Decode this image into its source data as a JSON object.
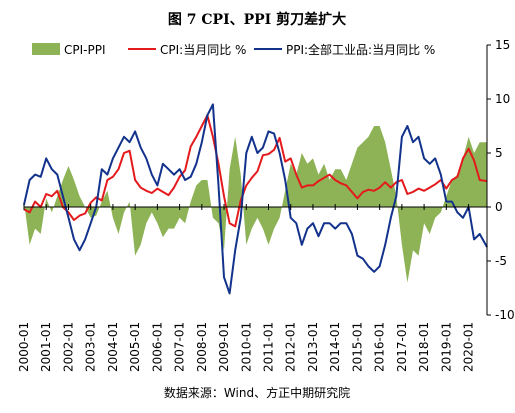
{
  "figure": {
    "title": "图 7 CPI、PPI 剪刀差扩大",
    "source": "数据来源：Wind、方正中期研究院"
  },
  "chart_data": {
    "type": "line",
    "title": "图 7 CPI、PPI 剪刀差扩大",
    "ylim": [
      -10,
      15
    ],
    "yticks": [
      -10,
      -5,
      0,
      5,
      10,
      15
    ],
    "y_axis_position": "right",
    "xlim": [
      2000.0,
      2020.83
    ],
    "xticks": [
      "2000-01",
      "2001-01",
      "2002-01",
      "2003-01",
      "2004-01",
      "2005-01",
      "2006-01",
      "2007-01",
      "2008-01",
      "2009-01",
      "2010-01",
      "2011-01",
      "2012-01",
      "2013-01",
      "2014-01",
      "2015-01",
      "2016-01",
      "2017-01",
      "2018-01",
      "2019-01",
      "2020-01"
    ],
    "legend": {
      "placement": "top"
    },
    "series": [
      {
        "name": "CPI-PPI",
        "kind": "area",
        "color": "#8db356",
        "points": [
          [
            2000.0,
            0.5
          ],
          [
            2000.25,
            -3.5
          ],
          [
            2000.5,
            -2.0
          ],
          [
            2000.75,
            -2.5
          ],
          [
            2001.0,
            0.8
          ],
          [
            2001.25,
            -0.5
          ],
          [
            2001.5,
            1.0
          ],
          [
            2001.75,
            2.5
          ],
          [
            2002.0,
            3.8
          ],
          [
            2002.25,
            2.5
          ],
          [
            2002.5,
            1.0
          ],
          [
            2002.75,
            0.0
          ],
          [
            2003.0,
            -1.0
          ],
          [
            2003.25,
            -0.8
          ],
          [
            2003.5,
            0.5
          ],
          [
            2003.75,
            1.5
          ],
          [
            2004.0,
            -1.0
          ],
          [
            2004.25,
            -2.5
          ],
          [
            2004.5,
            -0.5
          ],
          [
            2004.75,
            0.5
          ],
          [
            2005.0,
            -4.5
          ],
          [
            2005.25,
            -3.5
          ],
          [
            2005.5,
            -1.5
          ],
          [
            2005.75,
            -0.5
          ],
          [
            2006.0,
            -1.5
          ],
          [
            2006.25,
            -2.8
          ],
          [
            2006.5,
            -2.0
          ],
          [
            2006.75,
            -2.0
          ],
          [
            2007.0,
            -1.0
          ],
          [
            2007.25,
            -1.5
          ],
          [
            2007.5,
            0.5
          ],
          [
            2007.75,
            2.0
          ],
          [
            2008.0,
            2.5
          ],
          [
            2008.25,
            2.5
          ],
          [
            2008.5,
            -1.0
          ],
          [
            2008.75,
            -1.5
          ],
          [
            2009.0,
            -4.0
          ],
          [
            2009.25,
            3.5
          ],
          [
            2009.5,
            6.5
          ],
          [
            2009.75,
            3.0
          ],
          [
            2010.0,
            -3.5
          ],
          [
            2010.25,
            -2.0
          ],
          [
            2010.5,
            -1.0
          ],
          [
            2010.75,
            -2.0
          ],
          [
            2011.0,
            -3.5
          ],
          [
            2011.25,
            -2.0
          ],
          [
            2011.5,
            -1.0
          ],
          [
            2011.75,
            1.5
          ],
          [
            2012.0,
            4.0
          ],
          [
            2012.25,
            3.0
          ],
          [
            2012.5,
            5.0
          ],
          [
            2012.75,
            4.0
          ],
          [
            2013.0,
            4.5
          ],
          [
            2013.25,
            3.0
          ],
          [
            2013.5,
            4.0
          ],
          [
            2013.75,
            2.5
          ],
          [
            2014.0,
            3.5
          ],
          [
            2014.25,
            3.5
          ],
          [
            2014.5,
            2.5
          ],
          [
            2014.75,
            4.0
          ],
          [
            2015.0,
            5.5
          ],
          [
            2015.25,
            6.0
          ],
          [
            2015.5,
            6.5
          ],
          [
            2015.75,
            7.5
          ],
          [
            2016.0,
            7.5
          ],
          [
            2016.25,
            6.0
          ],
          [
            2016.5,
            3.5
          ],
          [
            2016.75,
            1.0
          ],
          [
            2017.0,
            -3.5
          ],
          [
            2017.25,
            -7.0
          ],
          [
            2017.5,
            -4.0
          ],
          [
            2017.75,
            -4.5
          ],
          [
            2018.0,
            -1.5
          ],
          [
            2018.25,
            -2.5
          ],
          [
            2018.5,
            -1.0
          ],
          [
            2018.75,
            -0.5
          ],
          [
            2019.0,
            1.0
          ],
          [
            2019.25,
            2.5
          ],
          [
            2019.5,
            3.0
          ],
          [
            2019.75,
            4.5
          ],
          [
            2020.0,
            6.5
          ],
          [
            2020.25,
            5.0
          ],
          [
            2020.5,
            6.0
          ],
          [
            2020.83,
            6.0
          ]
        ]
      },
      {
        "name": "CPI:当月同比 %",
        "kind": "line",
        "color": "#e41a1c",
        "points": [
          [
            2000.0,
            -0.2
          ],
          [
            2000.25,
            -0.5
          ],
          [
            2000.5,
            0.5
          ],
          [
            2000.75,
            0.0
          ],
          [
            2001.0,
            1.2
          ],
          [
            2001.25,
            1.0
          ],
          [
            2001.5,
            1.5
          ],
          [
            2001.75,
            0.0
          ],
          [
            2002.0,
            -0.5
          ],
          [
            2002.25,
            -1.2
          ],
          [
            2002.5,
            -0.8
          ],
          [
            2002.75,
            -0.6
          ],
          [
            2003.0,
            0.4
          ],
          [
            2003.25,
            0.9
          ],
          [
            2003.5,
            0.6
          ],
          [
            2003.75,
            2.5
          ],
          [
            2004.0,
            2.8
          ],
          [
            2004.25,
            3.5
          ],
          [
            2004.5,
            5.0
          ],
          [
            2004.75,
            5.2
          ],
          [
            2005.0,
            2.5
          ],
          [
            2005.25,
            1.8
          ],
          [
            2005.5,
            1.5
          ],
          [
            2005.75,
            1.3
          ],
          [
            2006.0,
            1.7
          ],
          [
            2006.25,
            1.4
          ],
          [
            2006.5,
            1.1
          ],
          [
            2006.75,
            1.8
          ],
          [
            2007.0,
            2.8
          ],
          [
            2007.25,
            3.4
          ],
          [
            2007.5,
            5.6
          ],
          [
            2007.75,
            6.5
          ],
          [
            2008.0,
            7.5
          ],
          [
            2008.25,
            8.5
          ],
          [
            2008.5,
            6.5
          ],
          [
            2008.75,
            4.0
          ],
          [
            2009.0,
            1.0
          ],
          [
            2009.25,
            -1.5
          ],
          [
            2009.5,
            -1.8
          ],
          [
            2009.75,
            0.6
          ],
          [
            2010.0,
            2.0
          ],
          [
            2010.25,
            2.7
          ],
          [
            2010.5,
            3.3
          ],
          [
            2010.75,
            4.8
          ],
          [
            2011.0,
            4.9
          ],
          [
            2011.25,
            5.3
          ],
          [
            2011.5,
            6.4
          ],
          [
            2011.75,
            4.2
          ],
          [
            2012.0,
            4.5
          ],
          [
            2012.25,
            3.0
          ],
          [
            2012.5,
            1.8
          ],
          [
            2012.75,
            2.0
          ],
          [
            2013.0,
            2.0
          ],
          [
            2013.25,
            2.4
          ],
          [
            2013.5,
            2.7
          ],
          [
            2013.75,
            3.0
          ],
          [
            2014.0,
            2.5
          ],
          [
            2014.25,
            2.2
          ],
          [
            2014.5,
            2.0
          ],
          [
            2014.75,
            1.4
          ],
          [
            2015.0,
            0.8
          ],
          [
            2015.25,
            1.4
          ],
          [
            2015.5,
            1.6
          ],
          [
            2015.75,
            1.5
          ],
          [
            2016.0,
            1.8
          ],
          [
            2016.25,
            2.3
          ],
          [
            2016.5,
            1.8
          ],
          [
            2016.75,
            2.3
          ],
          [
            2017.0,
            2.5
          ],
          [
            2017.25,
            1.2
          ],
          [
            2017.5,
            1.4
          ],
          [
            2017.75,
            1.7
          ],
          [
            2018.0,
            1.5
          ],
          [
            2018.25,
            1.8
          ],
          [
            2018.5,
            2.1
          ],
          [
            2018.75,
            2.5
          ],
          [
            2019.0,
            1.7
          ],
          [
            2019.25,
            2.5
          ],
          [
            2019.5,
            2.8
          ],
          [
            2019.75,
            4.5
          ],
          [
            2020.0,
            5.4
          ],
          [
            2020.25,
            4.3
          ],
          [
            2020.5,
            2.5
          ],
          [
            2020.83,
            2.4
          ]
        ]
      },
      {
        "name": "PPI:全部工业品:当月同比 %",
        "kind": "line",
        "color": "#12328c",
        "points": [
          [
            2000.0,
            0.2
          ],
          [
            2000.25,
            2.5
          ],
          [
            2000.5,
            3.0
          ],
          [
            2000.75,
            2.8
          ],
          [
            2001.0,
            4.5
          ],
          [
            2001.25,
            3.5
          ],
          [
            2001.5,
            3.0
          ],
          [
            2001.75,
            1.0
          ],
          [
            2002.0,
            -1.0
          ],
          [
            2002.25,
            -3.0
          ],
          [
            2002.5,
            -4.0
          ],
          [
            2002.75,
            -3.0
          ],
          [
            2003.0,
            -1.5
          ],
          [
            2003.25,
            0.0
          ],
          [
            2003.5,
            3.5
          ],
          [
            2003.75,
            3.0
          ],
          [
            2004.0,
            4.5
          ],
          [
            2004.25,
            5.5
          ],
          [
            2004.5,
            6.5
          ],
          [
            2004.75,
            6.0
          ],
          [
            2005.0,
            7.0
          ],
          [
            2005.25,
            5.5
          ],
          [
            2005.5,
            4.5
          ],
          [
            2005.75,
            3.0
          ],
          [
            2006.0,
            2.0
          ],
          [
            2006.25,
            4.0
          ],
          [
            2006.5,
            3.5
          ],
          [
            2006.75,
            3.0
          ],
          [
            2007.0,
            3.5
          ],
          [
            2007.25,
            2.5
          ],
          [
            2007.5,
            2.8
          ],
          [
            2007.75,
            4.0
          ],
          [
            2008.0,
            6.0
          ],
          [
            2008.25,
            8.5
          ],
          [
            2008.5,
            9.5
          ],
          [
            2008.75,
            2.0
          ],
          [
            2009.0,
            -6.5
          ],
          [
            2009.25,
            -8.0
          ],
          [
            2009.5,
            -4.0
          ],
          [
            2009.75,
            -1.0
          ],
          [
            2010.0,
            5.0
          ],
          [
            2010.25,
            6.5
          ],
          [
            2010.5,
            5.0
          ],
          [
            2010.75,
            5.5
          ],
          [
            2011.0,
            7.0
          ],
          [
            2011.25,
            6.8
          ],
          [
            2011.5,
            5.0
          ],
          [
            2011.75,
            2.5
          ],
          [
            2012.0,
            -1.0
          ],
          [
            2012.25,
            -1.5
          ],
          [
            2012.5,
            -3.5
          ],
          [
            2012.75,
            -2.0
          ],
          [
            2013.0,
            -1.5
          ],
          [
            2013.25,
            -2.7
          ],
          [
            2013.5,
            -1.5
          ],
          [
            2013.75,
            -1.5
          ],
          [
            2014.0,
            -2.0
          ],
          [
            2014.25,
            -1.5
          ],
          [
            2014.5,
            -1.5
          ],
          [
            2014.75,
            -2.5
          ],
          [
            2015.0,
            -4.5
          ],
          [
            2015.25,
            -4.8
          ],
          [
            2015.5,
            -5.5
          ],
          [
            2015.75,
            -6.0
          ],
          [
            2016.0,
            -5.5
          ],
          [
            2016.25,
            -3.5
          ],
          [
            2016.5,
            -1.0
          ],
          [
            2016.75,
            1.0
          ],
          [
            2017.0,
            6.5
          ],
          [
            2017.25,
            7.5
          ],
          [
            2017.5,
            6.0
          ],
          [
            2017.75,
            6.5
          ],
          [
            2018.0,
            4.5
          ],
          [
            2018.25,
            4.0
          ],
          [
            2018.5,
            4.5
          ],
          [
            2018.75,
            3.0
          ],
          [
            2019.0,
            0.5
          ],
          [
            2019.25,
            0.5
          ],
          [
            2019.5,
            -0.5
          ],
          [
            2019.75,
            -1.0
          ],
          [
            2020.0,
            0.0
          ],
          [
            2020.25,
            -3.0
          ],
          [
            2020.5,
            -2.5
          ],
          [
            2020.83,
            -3.7
          ]
        ]
      }
    ]
  }
}
